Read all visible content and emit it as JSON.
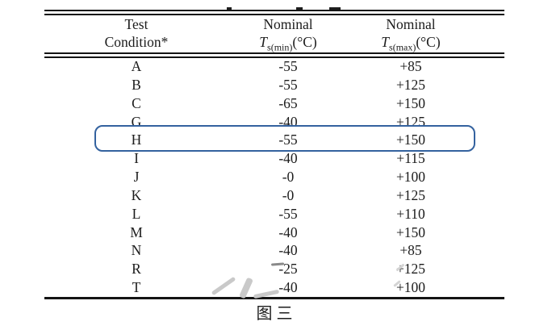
{
  "page": {
    "caption": "图 三"
  },
  "table": {
    "headers": {
      "col1_line1": "Test",
      "col1_line2": "Condition*",
      "col2_line1": "Nominal",
      "col2_sym": "T",
      "col2_sub": "s(min)",
      "col2_unit": "(°C)",
      "col3_line1": "Nominal",
      "col3_sym": "T",
      "col3_sub": "s(max)",
      "col3_unit": "(°C)"
    },
    "rows": [
      {
        "condition": "A",
        "ts_min": "-55",
        "ts_max": "+85"
      },
      {
        "condition": "B",
        "ts_min": "-55",
        "ts_max": "+125"
      },
      {
        "condition": "C",
        "ts_min": "-65",
        "ts_max": "+150"
      },
      {
        "condition": "G",
        "ts_min": "-40",
        "ts_max": "+125"
      },
      {
        "condition": "H",
        "ts_min": "-55",
        "ts_max": "+150"
      },
      {
        "condition": "I",
        "ts_min": "-40",
        "ts_max": "+115"
      },
      {
        "condition": "J",
        "ts_min": "-0",
        "ts_max": "+100"
      },
      {
        "condition": "K",
        "ts_min": "-0",
        "ts_max": "+125"
      },
      {
        "condition": "L",
        "ts_min": "-55",
        "ts_max": "+110"
      },
      {
        "condition": "M",
        "ts_min": "-40",
        "ts_max": "+150"
      },
      {
        "condition": "N",
        "ts_min": "-40",
        "ts_max": "+85"
      },
      {
        "condition": "R",
        "ts_min": "-25",
        "ts_max": "+125"
      },
      {
        "condition": "T",
        "ts_min": "-40",
        "ts_max": "+100"
      }
    ],
    "highlighted_condition": "H"
  },
  "colors": {
    "highlight_border": "#34629f",
    "rule": "#141414",
    "text": "#1c1c1c"
  }
}
